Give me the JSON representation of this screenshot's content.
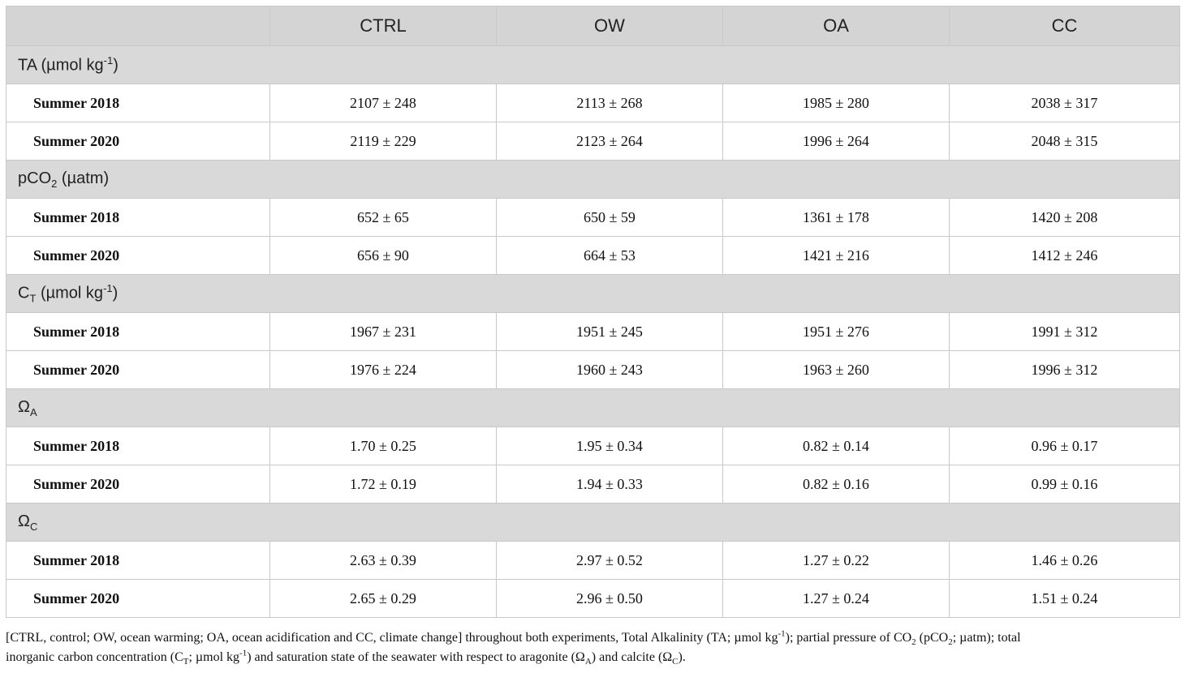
{
  "table": {
    "header": [
      "",
      "CTRL",
      "OW",
      "OA",
      "CC"
    ],
    "groups": [
      {
        "label": {
          "pre": "TA (µmol kg",
          "sub": "",
          "sup": "-1",
          "post": ")"
        },
        "rows": [
          {
            "label": "Summer 2018",
            "values": [
              "2107 ± 248",
              "2113 ± 268",
              "1985 ± 280",
              "2038 ± 317"
            ]
          },
          {
            "label": "Summer 2020",
            "values": [
              "2119 ± 229",
              "2123 ± 264",
              "1996 ± 264",
              "2048 ± 315"
            ]
          }
        ]
      },
      {
        "label": {
          "pre": "pCO",
          "sub": "2",
          "sup": "",
          "post": " (µatm)"
        },
        "rows": [
          {
            "label": "Summer 2018",
            "values": [
              "652 ± 65",
              "650 ± 59",
              "1361 ± 178",
              "1420 ± 208"
            ]
          },
          {
            "label": "Summer 2020",
            "values": [
              "656 ± 90",
              "664 ± 53",
              "1421 ± 216",
              "1412 ± 246"
            ]
          }
        ]
      },
      {
        "label": {
          "pre": "C",
          "sub": "T",
          "sup": "",
          "post": " (µmol kg",
          "sup2": "-1",
          "post2": ")"
        },
        "rows": [
          {
            "label": "Summer 2018",
            "values": [
              "1967 ± 231",
              "1951 ± 245",
              "1951 ± 276",
              "1991 ± 312"
            ]
          },
          {
            "label": "Summer 2020",
            "values": [
              "1976 ± 224",
              "1960 ± 243",
              "1963 ± 260",
              "1996 ± 312"
            ]
          }
        ]
      },
      {
        "label": {
          "pre": "Ω",
          "sub": "A",
          "sup": "",
          "post": ""
        },
        "rows": [
          {
            "label": "Summer 2018",
            "values": [
              "1.70 ± 0.25",
              "1.95 ± 0.34",
              "0.82 ± 0.14",
              "0.96 ± 0.17"
            ]
          },
          {
            "label": "Summer 2020",
            "values": [
              "1.72 ± 0.19",
              "1.94 ± 0.33",
              "0.82 ± 0.16",
              "0.99 ± 0.16"
            ]
          }
        ]
      },
      {
        "label": {
          "pre": "Ω",
          "sub": "C",
          "sup": "",
          "post": ""
        },
        "rows": [
          {
            "label": "Summer 2018",
            "values": [
              "2.63 ± 0.39",
              "2.97 ± 0.52",
              "1.27 ± 0.22",
              "1.46 ± 0.26"
            ]
          },
          {
            "label": "Summer 2020",
            "values": [
              "2.65 ± 0.29",
              "2.96 ± 0.50",
              "1.27 ± 0.24",
              "1.51 ± 0.24"
            ]
          }
        ]
      }
    ]
  },
  "footnote": {
    "line1_a": "[CTRL, control; OW, ocean warming; OA, ocean acidification and CC, climate change] throughout both experiments, Total Alkalinity (TA; µmol kg",
    "line1_sup": "-1",
    "line1_b": "); partial pressure of CO",
    "line1_sub1": "2",
    "line1_c": " (pCO",
    "line1_sub2": "2",
    "line1_d": "; µatm); total",
    "line2_a": "inorganic carbon concentration (C",
    "line2_sub1": "T",
    "line2_b": "; µmol kg",
    "line2_sup": "-1",
    "line2_c": ") and saturation state of the seawater with respect to aragonite (Ω",
    "line2_sub2": "A",
    "line2_d": ") and calcite (Ω",
    "line2_sub3": "C",
    "line2_e": ")."
  }
}
